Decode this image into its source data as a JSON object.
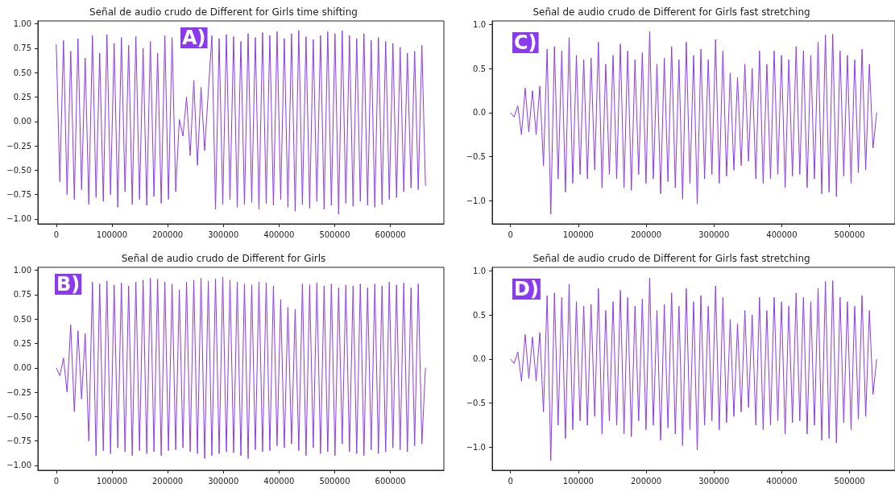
{
  "chart_data": [
    {
      "type": "line",
      "title": "Señal de audio crudo de Different for Girls time shifting",
      "annotations": [
        "A)"
      ],
      "xlim": [
        -33000,
        696000
      ],
      "xticks": [
        0,
        100000,
        200000,
        300000,
        400000,
        500000,
        600000
      ],
      "ylim": [
        -1.05,
        1.03
      ],
      "yticks": [
        {
          "value": -1,
          "label": "−1.00"
        },
        {
          "value": -0.75,
          "label": "−0.75"
        },
        {
          "value": -0.5,
          "label": "−0.50"
        },
        {
          "value": -0.25,
          "label": "−0.25"
        },
        {
          "value": 0,
          "label": "0.00"
        },
        {
          "value": 0.25,
          "label": "0.25"
        },
        {
          "value": 0.5,
          "label": "0.50"
        },
        {
          "value": 0.75,
          "label": "0.75"
        },
        {
          "value": 1,
          "label": "1.00"
        }
      ],
      "grid": false,
      "marker": "none",
      "line_style": "solid",
      "series": [
        {
          "color": "#8a3aef",
          "x": [
            0,
            6500,
            13000,
            19500,
            26000,
            32500,
            39000,
            45500,
            52000,
            58500,
            65000,
            71500,
            78000,
            84500,
            91000,
            97500,
            104000,
            110500,
            117000,
            123500,
            130000,
            136500,
            143000,
            149500,
            156000,
            162500,
            169000,
            175500,
            182000,
            188500,
            195000,
            201500,
            208000,
            214500,
            221000,
            227500,
            234000,
            240500,
            247000,
            253500,
            260000,
            266500,
            273000,
            279500,
            286000,
            292500,
            299000,
            305500,
            312000,
            318500,
            325000,
            331500,
            338000,
            344500,
            351000,
            357500,
            364000,
            370500,
            377000,
            383500,
            390000,
            396500,
            403000,
            409500,
            416000,
            422500,
            429000,
            435500,
            442000,
            448500,
            455000,
            461500,
            468000,
            474500,
            481000,
            487500,
            494000,
            500500,
            507000,
            513500,
            520000,
            526500,
            533000,
            539500,
            546000,
            552500,
            559000,
            565500,
            572000,
            578500,
            585000,
            591500,
            598000,
            604500,
            611000,
            617500,
            624000,
            630500,
            637000,
            643500,
            650000,
            656500,
            663000
          ],
          "values": [
            0.79,
            -0.62,
            0.83,
            -0.75,
            0.72,
            -0.8,
            0.85,
            -0.7,
            0.65,
            -0.85,
            0.88,
            -0.78,
            0.7,
            -0.82,
            0.89,
            -0.75,
            0.8,
            -0.88,
            0.86,
            -0.72,
            0.78,
            -0.85,
            0.87,
            -0.8,
            0.75,
            -0.86,
            0.82,
            -0.77,
            0.7,
            -0.84,
            0.88,
            -0.8,
            0.86,
            -0.72,
            0.02,
            -0.15,
            0.25,
            -0.35,
            0.42,
            -0.45,
            0.35,
            -0.3,
            0.3,
            0.88,
            -0.9,
            0.85,
            -0.85,
            0.89,
            -0.8,
            0.87,
            -0.88,
            0.82,
            -0.85,
            0.9,
            -0.83,
            0.86,
            -0.9,
            0.91,
            -0.84,
            0.88,
            -0.86,
            0.92,
            -0.8,
            0.85,
            -0.88,
            0.9,
            -0.92,
            0.93,
            -0.85,
            0.87,
            -0.89,
            0.84,
            -0.82,
            0.88,
            -0.9,
            0.92,
            -0.86,
            0.9,
            -0.95,
            0.93,
            -0.84,
            0.88,
            -0.87,
            0.85,
            -0.82,
            0.9,
            -0.86,
            0.83,
            -0.88,
            0.86,
            -0.85,
            0.82,
            -0.8,
            0.8,
            -0.78,
            0.76,
            -0.72,
            0.7,
            -0.68,
            0.72,
            -0.7,
            0.78,
            -0.66
          ]
        }
      ]
    },
    {
      "type": "line",
      "title": "Señal de audio crudo de Different for Girls fast stretching",
      "annotations": [
        "C)"
      ],
      "xlim": [
        -27000,
        567000
      ],
      "xticks": [
        0,
        100000,
        200000,
        300000,
        400000,
        500000
      ],
      "ylim": [
        -1.26,
        1.04
      ],
      "yticks": [
        {
          "value": -1,
          "label": "−1.0"
        },
        {
          "value": -0.5,
          "label": "−0.5"
        },
        {
          "value": 0,
          "label": "0.0"
        },
        {
          "value": 0.5,
          "label": "0.5"
        },
        {
          "value": 1,
          "label": "1.0"
        }
      ],
      "grid": false,
      "marker": "none",
      "line_style": "solid",
      "series": [
        {
          "color": "#8a3aef",
          "x": [
            0,
            5400,
            10800,
            16200,
            21600,
            27000,
            32400,
            37800,
            43200,
            48600,
            54000,
            59400,
            64800,
            70200,
            75600,
            81000,
            86400,
            91800,
            97200,
            102600,
            108000,
            113400,
            118800,
            124200,
            129600,
            135000,
            140400,
            145800,
            151200,
            156600,
            162000,
            167400,
            172800,
            178200,
            183600,
            189000,
            194400,
            199800,
            205200,
            210600,
            216000,
            221400,
            226800,
            232200,
            237600,
            243000,
            248400,
            253800,
            259200,
            264600,
            270000,
            275400,
            280800,
            286200,
            291600,
            297000,
            302400,
            307800,
            313200,
            318600,
            324000,
            329400,
            334800,
            340200,
            345600,
            351000,
            356400,
            361800,
            367200,
            372600,
            378000,
            383400,
            388800,
            394200,
            399600,
            405000,
            410400,
            415800,
            421200,
            426600,
            432000,
            437400,
            442800,
            448200,
            453600,
            459000,
            464400,
            469800,
            475200,
            480600,
            486000,
            491400,
            496800,
            502200,
            507600,
            513000,
            518400,
            523800,
            529200,
            534600,
            540000
          ],
          "values": [
            0.0,
            -0.05,
            0.08,
            -0.25,
            0.28,
            -0.22,
            0.25,
            -0.25,
            0.3,
            -0.6,
            0.72,
            -1.15,
            0.75,
            -0.75,
            0.7,
            -0.9,
            0.85,
            -0.8,
            0.65,
            -0.7,
            0.6,
            -0.75,
            0.62,
            -0.65,
            0.8,
            -0.85,
            0.55,
            -0.7,
            0.65,
            -0.75,
            0.78,
            -0.85,
            0.7,
            -0.88,
            0.6,
            -0.7,
            0.68,
            -0.8,
            0.92,
            -0.75,
            0.55,
            -0.92,
            0.62,
            -0.78,
            0.75,
            -0.85,
            0.6,
            -0.98,
            0.8,
            -0.8,
            0.65,
            -1.03,
            0.72,
            -0.75,
            0.6,
            -0.7,
            0.83,
            -0.8,
            0.7,
            -0.72,
            0.45,
            -0.65,
            0.4,
            -0.6,
            0.55,
            -0.55,
            0.5,
            -0.75,
            0.7,
            -0.8,
            0.55,
            -0.75,
            0.7,
            -0.7,
            0.65,
            -0.85,
            0.6,
            -0.72,
            0.75,
            -0.7,
            0.7,
            -0.85,
            0.65,
            -0.75,
            0.8,
            -0.92,
            0.88,
            -0.9,
            0.89,
            -0.95,
            0.7,
            -0.72,
            0.65,
            -0.8,
            0.6,
            -0.68,
            0.72,
            -0.65,
            0.55,
            -0.4,
            0.0
          ]
        }
      ]
    },
    {
      "type": "line",
      "title": "Señal de audio crudo de Different for Girls",
      "annotations": [
        "B)"
      ],
      "xlim": [
        -33000,
        696000
      ],
      "xticks": [
        0,
        100000,
        200000,
        300000,
        400000,
        500000,
        600000
      ],
      "ylim": [
        -1.05,
        1.03
      ],
      "yticks": [
        {
          "value": -1,
          "label": "−1.00"
        },
        {
          "value": -0.75,
          "label": "−0.75"
        },
        {
          "value": -0.5,
          "label": "−0.50"
        },
        {
          "value": -0.25,
          "label": "−0.25"
        },
        {
          "value": 0,
          "label": "0.00"
        },
        {
          "value": 0.25,
          "label": "0.25"
        },
        {
          "value": 0.5,
          "label": "0.50"
        },
        {
          "value": 0.75,
          "label": "0.75"
        },
        {
          "value": 1,
          "label": "1.00"
        }
      ],
      "grid": false,
      "marker": "none",
      "line_style": "solid",
      "series": [
        {
          "color": "#8a3aef",
          "x": [
            0,
            6500,
            13000,
            19500,
            26000,
            32500,
            39000,
            45500,
            52000,
            58500,
            65000,
            71500,
            78000,
            84500,
            91000,
            97500,
            104000,
            110500,
            117000,
            123500,
            130000,
            136500,
            143000,
            149500,
            156000,
            162500,
            169000,
            175500,
            182000,
            188500,
            195000,
            201500,
            208000,
            214500,
            221000,
            227500,
            234000,
            240500,
            247000,
            253500,
            260000,
            266500,
            273000,
            279500,
            286000,
            292500,
            299000,
            305500,
            312000,
            318500,
            325000,
            331500,
            338000,
            344500,
            351000,
            357500,
            364000,
            370500,
            377000,
            383500,
            390000,
            396500,
            403000,
            409500,
            416000,
            422500,
            429000,
            435500,
            442000,
            448500,
            455000,
            461500,
            468000,
            474500,
            481000,
            487500,
            494000,
            500500,
            507000,
            513500,
            520000,
            526500,
            533000,
            539500,
            546000,
            552500,
            559000,
            565500,
            572000,
            578500,
            585000,
            591500,
            598000,
            604500,
            611000,
            617500,
            624000,
            630500,
            637000,
            643500,
            650000,
            656500,
            663000
          ],
          "values": [
            0.0,
            -0.08,
            0.1,
            -0.25,
            0.44,
            -0.45,
            0.38,
            -0.32,
            0.35,
            -0.75,
            0.88,
            -0.9,
            0.86,
            -0.85,
            0.89,
            -0.88,
            0.85,
            -0.82,
            0.87,
            -0.86,
            0.84,
            -0.9,
            0.88,
            -0.85,
            0.9,
            -0.88,
            0.92,
            -0.86,
            0.91,
            -0.9,
            0.88,
            -0.85,
            0.86,
            -0.84,
            0.8,
            -0.82,
            0.88,
            -0.86,
            0.9,
            -0.88,
            0.92,
            -0.93,
            0.89,
            -0.9,
            0.91,
            -0.88,
            0.93,
            -0.86,
            0.9,
            -0.87,
            0.88,
            -0.9,
            0.86,
            -0.93,
            0.85,
            -0.84,
            0.88,
            -0.86,
            0.87,
            -0.85,
            0.84,
            -0.8,
            0.7,
            -0.82,
            0.62,
            -0.78,
            0.6,
            -0.85,
            0.86,
            -0.9,
            0.85,
            -0.82,
            0.87,
            -0.88,
            0.84,
            -0.86,
            0.86,
            -0.9,
            0.82,
            -0.78,
            0.85,
            -0.86,
            0.84,
            -0.88,
            0.86,
            -0.9,
            0.82,
            -0.84,
            0.86,
            -0.88,
            0.84,
            -0.86,
            0.88,
            -0.82,
            0.85,
            -0.84,
            0.87,
            -0.86,
            0.82,
            -0.8,
            0.86,
            -0.78,
            0.0
          ]
        }
      ]
    },
    {
      "type": "line",
      "title": "Señal de audio crudo de Different for Girls fast stretching",
      "annotations": [
        "D)"
      ],
      "xlim": [
        -27000,
        567000
      ],
      "xticks": [
        0,
        100000,
        200000,
        300000,
        400000,
        500000
      ],
      "ylim": [
        -1.26,
        1.04
      ],
      "yticks": [
        {
          "value": -1,
          "label": "−1.0"
        },
        {
          "value": -0.5,
          "label": "−0.5"
        },
        {
          "value": 0,
          "label": "0.0"
        },
        {
          "value": 0.5,
          "label": "0.5"
        },
        {
          "value": 1,
          "label": "1.0"
        }
      ],
      "grid": false,
      "marker": "none",
      "line_style": "solid",
      "series": [
        {
          "color": "#8a3aef",
          "x": [
            0,
            5400,
            10800,
            16200,
            21600,
            27000,
            32400,
            37800,
            43200,
            48600,
            54000,
            59400,
            64800,
            70200,
            75600,
            81000,
            86400,
            91800,
            97200,
            102600,
            108000,
            113400,
            118800,
            124200,
            129600,
            135000,
            140400,
            145800,
            151200,
            156600,
            162000,
            167400,
            172800,
            178200,
            183600,
            189000,
            194400,
            199800,
            205200,
            210600,
            216000,
            221400,
            226800,
            232200,
            237600,
            243000,
            248400,
            253800,
            259200,
            264600,
            270000,
            275400,
            280800,
            286200,
            291600,
            297000,
            302400,
            307800,
            313200,
            318600,
            324000,
            329400,
            334800,
            340200,
            345600,
            351000,
            356400,
            361800,
            367200,
            372600,
            378000,
            383400,
            388800,
            394200,
            399600,
            405000,
            410400,
            415800,
            421200,
            426600,
            432000,
            437400,
            442800,
            448200,
            453600,
            459000,
            464400,
            469800,
            475200,
            480600,
            486000,
            491400,
            496800,
            502200,
            507600,
            513000,
            518400,
            523800,
            529200,
            534600,
            540000
          ],
          "values": [
            0.0,
            -0.05,
            0.08,
            -0.25,
            0.28,
            -0.22,
            0.25,
            -0.25,
            0.3,
            -0.6,
            0.72,
            -1.15,
            0.75,
            -0.75,
            0.7,
            -0.9,
            0.85,
            -0.8,
            0.65,
            -0.7,
            0.6,
            -0.75,
            0.62,
            -0.65,
            0.8,
            -0.85,
            0.55,
            -0.7,
            0.65,
            -0.75,
            0.78,
            -0.85,
            0.7,
            -0.88,
            0.6,
            -0.7,
            0.68,
            -0.8,
            0.92,
            -0.75,
            0.55,
            -0.92,
            0.62,
            -0.78,
            0.75,
            -0.85,
            0.6,
            -0.98,
            0.8,
            -0.8,
            0.65,
            -1.03,
            0.72,
            -0.75,
            0.6,
            -0.7,
            0.83,
            -0.8,
            0.7,
            -0.72,
            0.45,
            -0.65,
            0.4,
            -0.6,
            0.55,
            -0.55,
            0.5,
            -0.75,
            0.7,
            -0.8,
            0.55,
            -0.75,
            0.7,
            -0.7,
            0.65,
            -0.85,
            0.6,
            -0.72,
            0.75,
            -0.7,
            0.7,
            -0.85,
            0.65,
            -0.75,
            0.8,
            -0.92,
            0.88,
            -0.9,
            0.89,
            -0.95,
            0.7,
            -0.72,
            0.65,
            -0.8,
            0.6,
            -0.68,
            0.72,
            -0.65,
            0.55,
            -0.4,
            0.0
          ]
        }
      ]
    }
  ]
}
